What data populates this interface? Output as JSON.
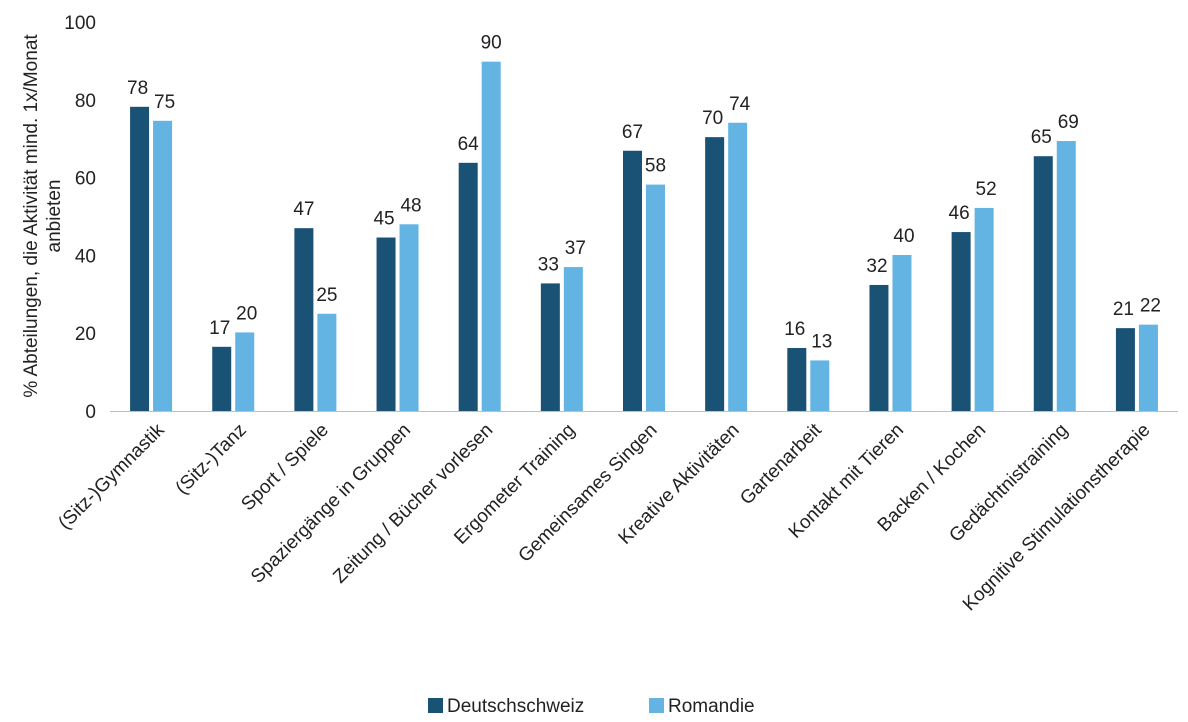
{
  "chart_data": {
    "type": "bar",
    "title": "",
    "xlabel": "",
    "ylabel_lines": [
      "% Abteilungen, die Aktivität mind. 1x/Monat",
      "anbieten"
    ],
    "ylim": [
      0,
      100
    ],
    "yticks": [
      0,
      20,
      40,
      60,
      80,
      100
    ],
    "grid": false,
    "legend_position": "bottom",
    "categories": [
      "(Sitz-)Gymnastik",
      "(Sitz-)Tanz",
      "Sport / Spiele",
      "Spaziergänge in Gruppen",
      "Zeitung / Bücher vorlesen",
      "Ergometer Training",
      "Gemeinsames Singen",
      "Kreative Aktivitäten",
      "Gartenarbeit",
      "Kontakt mit Tieren",
      "Backen / Kochen",
      "Gedächtnistraining",
      "Kognitive Stimulationstherapie"
    ],
    "series": [
      {
        "name": "Deutschschweiz",
        "color": "#1a5276",
        "values": [
          78.2,
          16.5,
          47,
          44.6,
          63.8,
          32.8,
          66.9,
          70.4,
          16.2,
          32.4,
          46,
          65.5,
          21.3
        ],
        "labels": [
          "78",
          "17",
          "47",
          "45",
          "64",
          "33",
          "67",
          "70",
          "16",
          "32",
          "46",
          "65",
          "21"
        ]
      },
      {
        "name": "Romandie",
        "color": "#63b4e3",
        "values": [
          74.6,
          20.2,
          25,
          48,
          89.8,
          37,
          58.2,
          74.1,
          13,
          40.1,
          52.2,
          69.4,
          22.2
        ],
        "labels": [
          "75",
          "20",
          "25",
          "48",
          "90",
          "37",
          "58",
          "74",
          "13",
          "40",
          "52",
          "69",
          "22"
        ]
      }
    ]
  }
}
